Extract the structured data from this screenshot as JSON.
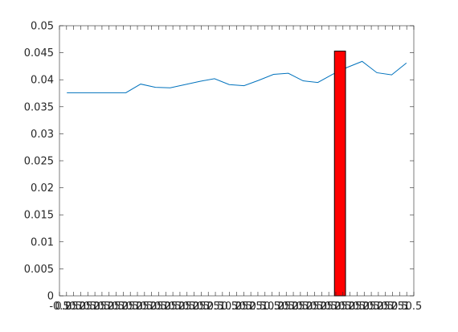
{
  "chart_data": {
    "type": "line",
    "title": "",
    "xlabel": "",
    "ylabel": "",
    "xlim": [
      -0.5,
      23.5
    ],
    "ylim": [
      0,
      0.05
    ],
    "grid": false,
    "legend": "none",
    "y_ticks": [
      0,
      0.005,
      0.01,
      0.015,
      0.02,
      0.025,
      0.03,
      0.035,
      0.04,
      0.045,
      0.05
    ],
    "y_tick_labels": [
      "0",
      "0.005",
      "0.01",
      "0.015",
      "0.02",
      "0.025",
      "0.03",
      "0.035",
      "0.04",
      "0.045",
      "0.05"
    ],
    "x_tick_labels": [
      "-0.5",
      "0.25",
      "0.5",
      "0.25",
      "0.5",
      "0.25",
      "0.5",
      "0.25",
      "0.5",
      "0.25",
      "0.5",
      "0.25",
      "0.5",
      "0.25",
      "0.5",
      "0.25",
      "0.5",
      "0.25",
      "0.5",
      "0.25",
      "0.5",
      "0.25",
      "0.5",
      "1",
      "0.5",
      "0.25",
      "0.5",
      "0.25",
      "0.5",
      "1",
      "0.5",
      "0.25",
      "0.5",
      "0.25",
      "0.5",
      "0.25",
      "0.5",
      "0.25",
      "0.5",
      "0.25",
      "0.5",
      "0.25",
      "0.5",
      "0.25",
      "0.5",
      "0.25",
      "0.5",
      "0.25",
      "0.5",
      "1",
      "0.5"
    ],
    "series": [
      {
        "type": "line",
        "color": "#0072bd",
        "x": [
          0,
          1,
          2,
          3,
          4,
          5,
          6,
          7,
          8,
          9,
          10,
          11,
          12,
          13,
          14,
          15,
          16,
          17,
          18,
          19,
          20,
          21,
          22,
          23
        ],
        "values": [
          0.0376,
          0.0376,
          0.0376,
          0.0376,
          0.0376,
          0.0392,
          0.0386,
          0.0385,
          0.0391,
          0.0397,
          0.0402,
          0.0391,
          0.0389,
          0.0399,
          0.041,
          0.0412,
          0.0398,
          0.0395,
          0.041,
          0.0423,
          0.0434,
          0.0413,
          0.0409,
          0.0431
        ]
      },
      {
        "type": "bar",
        "color": "#ff0000",
        "x": [
          18.5
        ],
        "values": [
          0.0453
        ],
        "width": 0.75
      }
    ]
  }
}
